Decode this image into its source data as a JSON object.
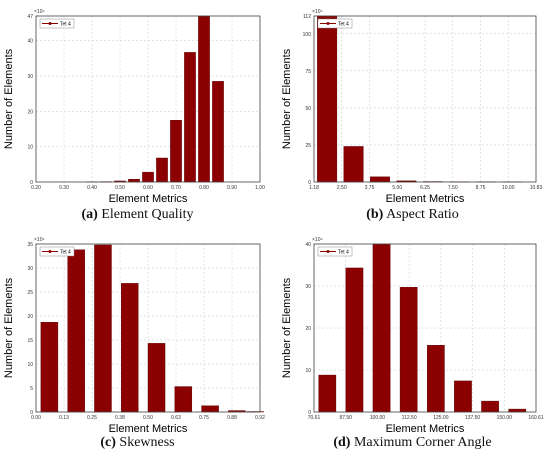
{
  "figures": [
    {
      "caption_letter": "(a)",
      "caption_text": "Element Quality"
    },
    {
      "caption_letter": "(b)",
      "caption_text": "Aspect Ratio"
    },
    {
      "caption_letter": "(c)",
      "caption_text": "Skewness"
    },
    {
      "caption_letter": "(d)",
      "caption_text": "Maximum Corner Angle"
    }
  ],
  "colors": {
    "bar": "#8b0000",
    "bar_edge": "#5a0000",
    "grid": "#c8c8c8"
  },
  "chart_data": [
    {
      "type": "bar",
      "xlabel": "Element Metrics",
      "ylabel": "Number of Elements",
      "legend": "Tet 4",
      "legend_position": "top-left",
      "multiplier": "×10⁴",
      "x_ticks": [
        "0.20",
        "0.30",
        "0.40",
        "0.50",
        "0.60",
        "0.70",
        "0.80",
        "0.90",
        "1.00"
      ],
      "xlim": [
        0.2,
        1.0
      ],
      "x": [
        0.4,
        0.45,
        0.5,
        0.55,
        0.6,
        0.65,
        0.7,
        0.75,
        0.8,
        0.85,
        0.9,
        0.95
      ],
      "values": [
        0.05,
        0.1,
        0.3,
        0.8,
        2.8,
        6.8,
        17.5,
        36.7,
        47,
        28.5,
        0,
        0
      ],
      "y_ticks": [
        "0",
        "10",
        "20",
        "30",
        "40",
        "47"
      ],
      "ylim": [
        0,
        47
      ],
      "bar_width": 0.04
    },
    {
      "type": "bar",
      "xlabel": "Element Metrics",
      "ylabel": "Number of Elements",
      "legend": "Tet 4",
      "legend_position": "top-left",
      "multiplier": "×10⁴",
      "x_ticks": [
        "1.18",
        "2.50",
        "3.75",
        "5.00",
        "6.25",
        "7.50",
        "8.75",
        "10.00",
        "10.83"
      ],
      "xlim": [
        1.18,
        10.83
      ],
      "x": [
        1.75,
        2.9,
        4.05,
        5.2,
        6.35,
        7.5,
        8.65,
        9.8
      ],
      "values": [
        112,
        24,
        3.5,
        0.8,
        0.3,
        0.2,
        0.1,
        0.1
      ],
      "y_ticks": [
        "0",
        "25",
        "50",
        "75",
        "100",
        "112"
      ],
      "ylim": [
        0,
        112
      ],
      "bar_width": 0.85
    },
    {
      "type": "bar",
      "xlabel": "Element Metrics",
      "ylabel": "Number of Elements",
      "legend": "Tet 4",
      "legend_position": "top-left",
      "multiplier": "×10⁴",
      "x_ticks": [
        "0.00",
        "0.13",
        "0.25",
        "0.38",
        "0.50",
        "0.63",
        "0.75",
        "0.88",
        "0.92"
      ],
      "xlim": [
        0,
        0.92
      ],
      "x": [
        0.055,
        0.165,
        0.275,
        0.385,
        0.495,
        0.605,
        0.715,
        0.825,
        0.9
      ],
      "values": [
        18.7,
        33.8,
        34.8,
        26.8,
        14.3,
        5.3,
        1.3,
        0.3,
        0.1
      ],
      "y_ticks": [
        "0",
        "5",
        "10",
        "15",
        "20",
        "25",
        "30",
        "35"
      ],
      "ylim": [
        0,
        35
      ],
      "bar_width": 0.07
    },
    {
      "type": "bar",
      "xlabel": "Element Metrics",
      "ylabel": "Number of Elements",
      "legend": "Tet 4",
      "legend_position": "top-left",
      "multiplier": "×10⁴",
      "x_ticks": [
        "70.61",
        "87.50",
        "100.00",
        "112.50",
        "125.00",
        "137.50",
        "150.00",
        "160.61"
      ],
      "xlim": [
        70.61,
        160.61
      ],
      "x": [
        76,
        87,
        98,
        109,
        120,
        131,
        142,
        153
      ],
      "values": [
        8.8,
        34.3,
        40,
        29.7,
        15.9,
        7.4,
        2.6,
        0.7
      ],
      "y_ticks": [
        "0",
        "10",
        "20",
        "30",
        "40"
      ],
      "ylim": [
        0,
        40
      ],
      "bar_width": 7
    }
  ]
}
